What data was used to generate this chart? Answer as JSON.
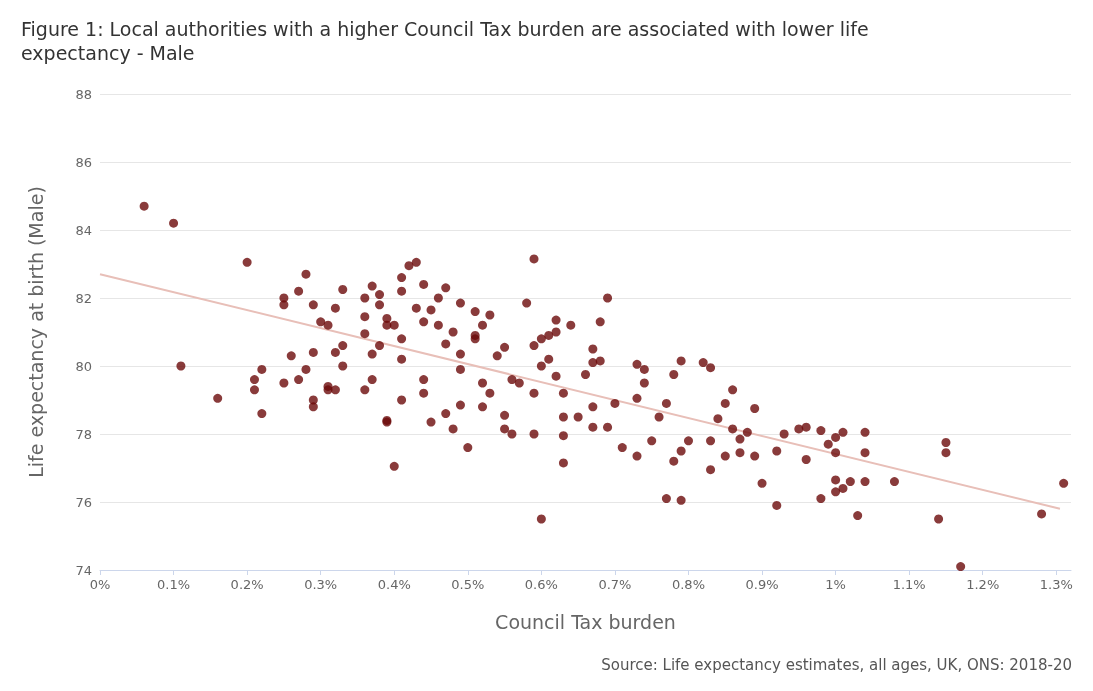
{
  "chart_data": {
    "type": "scatter",
    "title": "Figure 1: Local authorities with a higher Council Tax burden are associated with lower life expectancy - Male",
    "xlabel": "Council Tax burden",
    "ylabel": "Life expectancy at birth (Male)",
    "annotations": [
      "Source: Life expectancy estimates, all ages, UK, ONS: 2018-20"
    ],
    "xlim": [
      0,
      1.32
    ],
    "ylim": [
      74,
      88
    ],
    "xticks": [
      {
        "value": 0,
        "label": "0%"
      },
      {
        "value": 0.1,
        "label": "0.1%"
      },
      {
        "value": 0.2,
        "label": "0.2%"
      },
      {
        "value": 0.3,
        "label": "0.3%"
      },
      {
        "value": 0.4,
        "label": "0.4%"
      },
      {
        "value": 0.5,
        "label": "0.5%"
      },
      {
        "value": 0.6,
        "label": "0.6%"
      },
      {
        "value": 0.7,
        "label": "0.7%"
      },
      {
        "value": 0.8,
        "label": "0.8%"
      },
      {
        "value": 0.9,
        "label": "0.9%"
      },
      {
        "value": 1,
        "label": "1%"
      },
      {
        "value": 1.1,
        "label": "1.1%"
      },
      {
        "value": 1.2,
        "label": "1.2%"
      },
      {
        "value": 1.3,
        "label": "1.3%"
      }
    ],
    "yticks": [
      74,
      76,
      78,
      80,
      82,
      84,
      86,
      88
    ],
    "grid": "y",
    "marker": "circle",
    "series": [
      {
        "color": "#6b0a0a",
        "x": [
          0.06,
          0.1,
          0.11,
          0.16,
          0.2,
          0.21,
          0.21,
          0.22,
          0.22,
          0.25,
          0.25,
          0.25,
          0.26,
          0.27,
          0.28,
          0.27,
          0.28,
          0.29,
          0.29,
          0.29,
          0.29,
          0.3,
          0.31,
          0.31,
          0.31,
          0.33,
          0.32,
          0.32,
          0.33,
          0.33,
          0.32,
          0.36,
          0.36,
          0.36,
          0.36,
          0.37,
          0.37,
          0.37,
          0.38,
          0.38,
          0.38,
          0.39,
          0.39,
          0.39,
          0.39,
          0.4,
          0.4,
          0.41,
          0.41,
          0.41,
          0.41,
          0.41,
          0.42,
          0.43,
          0.43,
          0.44,
          0.44,
          0.44,
          0.44,
          0.45,
          0.45,
          0.46,
          0.46,
          0.47,
          0.47,
          0.47,
          0.48,
          0.48,
          0.49,
          0.49,
          0.49,
          0.49,
          0.5,
          0.51,
          0.51,
          0.51,
          0.52,
          0.53,
          0.52,
          0.53,
          0.52,
          0.54,
          0.55,
          0.55,
          0.55,
          0.56,
          0.56,
          0.57,
          0.58,
          0.59,
          0.59,
          0.59,
          0.59,
          0.6,
          0.6,
          0.6,
          0.61,
          0.61,
          0.62,
          0.62,
          0.62,
          0.63,
          0.63,
          0.63,
          0.63,
          0.64,
          0.65,
          0.66,
          0.67,
          0.67,
          0.68,
          0.68,
          0.67,
          0.67,
          0.69,
          0.69,
          0.7,
          0.71,
          0.73,
          0.73,
          0.73,
          0.74,
          0.74,
          0.75,
          0.76,
          0.77,
          0.77,
          0.78,
          0.78,
          0.79,
          0.79,
          0.79,
          0.8,
          0.82,
          0.83,
          0.83,
          0.83,
          0.84,
          0.85,
          0.85,
          0.86,
          0.86,
          0.87,
          0.87,
          0.88,
          0.89,
          0.89,
          0.9,
          0.92,
          0.92,
          0.93,
          0.95,
          0.96,
          0.96,
          0.98,
          0.98,
          0.99,
          1.0,
          1.0,
          1.0,
          1.0,
          1.01,
          1.01,
          1.02,
          1.03,
          1.04,
          1.04,
          1.04,
          1.08,
          1.14,
          1.15,
          1.15,
          1.17,
          1.28,
          1.31
        ],
        "values": [
          84.7,
          84.2,
          80.0,
          79.05,
          83.05,
          79.6,
          79.3,
          79.9,
          78.6,
          82.0,
          81.8,
          79.5,
          80.3,
          82.2,
          82.7,
          79.6,
          79.9,
          81.8,
          80.4,
          79.0,
          78.8,
          81.3,
          81.2,
          79.4,
          79.3,
          82.25,
          81.7,
          80.4,
          80.6,
          80.0,
          79.3,
          81.45,
          82.0,
          80.95,
          79.3,
          82.35,
          80.35,
          79.6,
          82.1,
          81.8,
          80.6,
          81.4,
          81.2,
          78.4,
          78.35,
          81.2,
          77.05,
          80.8,
          82.6,
          82.2,
          79.0,
          80.2,
          82.95,
          83.05,
          81.7,
          82.4,
          81.3,
          79.6,
          79.2,
          78.35,
          81.65,
          82.0,
          81.2,
          82.3,
          80.65,
          78.6,
          78.15,
          81.0,
          81.85,
          80.35,
          79.9,
          78.85,
          77.6,
          80.8,
          81.6,
          80.9,
          81.2,
          81.5,
          79.5,
          79.2,
          78.8,
          80.3,
          80.55,
          78.55,
          78.15,
          78.0,
          79.6,
          79.5,
          81.85,
          83.15,
          80.6,
          79.2,
          78.0,
          75.5,
          80.8,
          80.0,
          80.9,
          80.2,
          81.35,
          81.0,
          79.7,
          79.2,
          78.5,
          77.95,
          77.15,
          81.2,
          78.5,
          79.75,
          80.1,
          80.5,
          81.3,
          80.15,
          78.8,
          78.2,
          82.0,
          78.2,
          78.9,
          77.6,
          80.05,
          79.05,
          77.35,
          79.9,
          79.5,
          77.8,
          78.5,
          78.9,
          76.1,
          79.75,
          77.2,
          80.15,
          76.05,
          77.5,
          77.8,
          80.1,
          79.95,
          77.8,
          76.95,
          78.45,
          78.9,
          77.35,
          78.15,
          79.3,
          77.85,
          77.45,
          78.05,
          78.75,
          77.35,
          76.55,
          77.5,
          75.9,
          78.0,
          78.15,
          78.2,
          77.25,
          78.1,
          76.1,
          77.7,
          77.9,
          77.45,
          76.65,
          76.3,
          78.05,
          76.4,
          76.6,
          75.6,
          78.05,
          77.45,
          76.6,
          76.6,
          75.5,
          77.75,
          77.45,
          74.1,
          75.65,
          76.55
        ]
      },
      {
        "type": "line",
        "color": "#e8bfb8",
        "marker": "none",
        "x": [
          0,
          1.305
        ],
        "values": [
          82.7,
          75.8
        ]
      }
    ]
  }
}
